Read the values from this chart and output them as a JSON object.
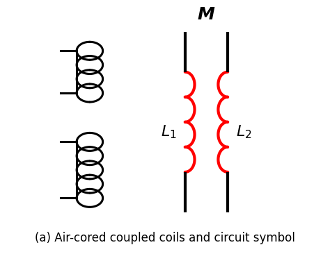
{
  "title": "(a) Air-cored coupled coils and circuit symbol",
  "M_label": "$\\boldsymbol{M}$",
  "L1_label": "$\\boldsymbol{L_1}$",
  "L2_label": "$\\boldsymbol{L_2}$",
  "coil_color": "#FF0000",
  "line_color": "#000000",
  "bg_color": "#FFFFFF",
  "title_fontsize": 12,
  "label_fontsize": 16,
  "fig_width": 4.74,
  "fig_height": 3.66,
  "dpi": 100
}
